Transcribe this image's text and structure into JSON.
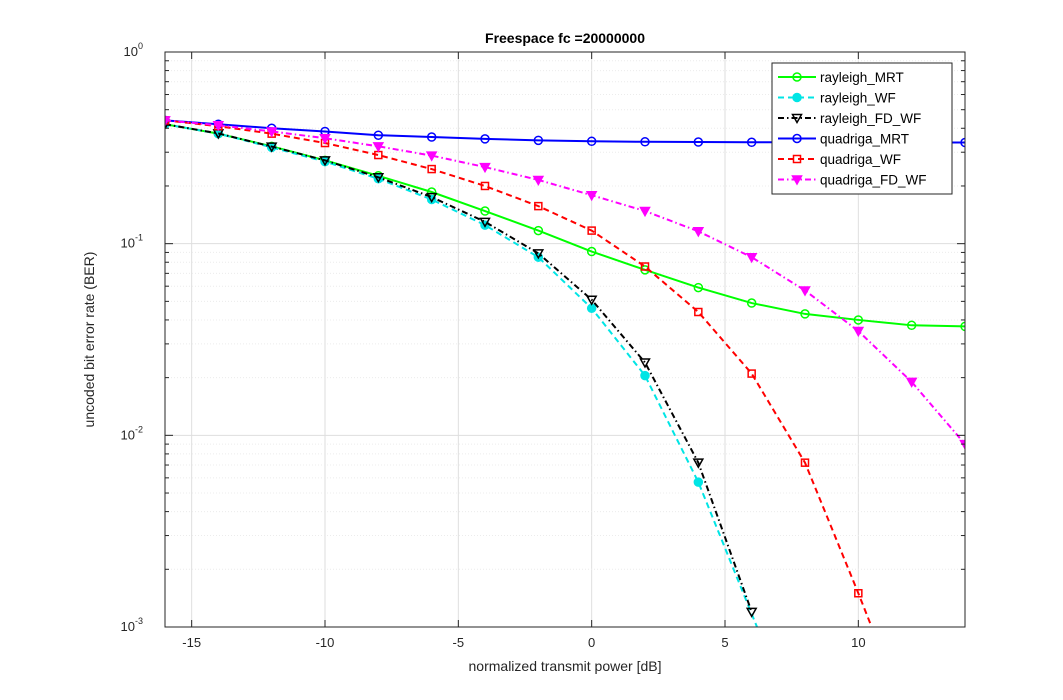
{
  "chart_data": {
    "type": "line",
    "title": "Freespace fc =20000000",
    "xlabel": "normalized transmit power [dB]",
    "ylabel": "uncoded bit error rate (BER)",
    "xlim": [
      -16,
      14
    ],
    "ylim": [
      0.001,
      1
    ],
    "yscale": "log",
    "grid": true,
    "minor_grid": true,
    "legend_position": "top-right",
    "x_ticks": [
      -15,
      -10,
      -5,
      0,
      5,
      10
    ],
    "x_tick_labels": [
      "-15",
      "-10",
      "-5",
      "0",
      "5",
      "10"
    ],
    "y_ticks": [
      {
        "value": 0.001,
        "base": "10",
        "exp": "-3"
      },
      {
        "value": 0.01,
        "base": "10",
        "exp": "-2"
      },
      {
        "value": 0.1,
        "base": "10",
        "exp": "-1"
      },
      {
        "value": 1,
        "base": "10",
        "exp": "0"
      }
    ],
    "series": [
      {
        "name": "rayleigh_MRT",
        "color": "#00ff00",
        "line": "solid",
        "marker": "circle",
        "x": [
          -16,
          -14,
          -12,
          -10,
          -8,
          -6,
          -4,
          -2,
          0,
          2,
          4,
          6,
          8,
          10,
          12,
          14
        ],
        "y": [
          0.42,
          0.375,
          0.322,
          0.272,
          0.226,
          0.186,
          0.148,
          0.117,
          0.091,
          0.073,
          0.059,
          0.049,
          0.043,
          0.04,
          0.0375,
          0.037
        ]
      },
      {
        "name": "rayleigh_WF",
        "color": "#00e5e5",
        "line": "dashed",
        "marker": "circle-filled",
        "x": [
          -16,
          -14,
          -12,
          -10,
          -8,
          -6,
          -4,
          -2,
          0,
          2,
          4,
          6.2
        ],
        "y": [
          0.42,
          0.375,
          0.318,
          0.268,
          0.218,
          0.17,
          0.125,
          0.085,
          0.046,
          0.0205,
          0.0057,
          0.001
        ]
      },
      {
        "name": "rayleigh_FD_WF",
        "color": "#000000",
        "line": "dashdot",
        "marker": "triangle-down",
        "x": [
          -16,
          -14,
          -12,
          -10,
          -8,
          -6,
          -4,
          -2,
          0,
          2,
          4,
          6
        ],
        "y": [
          0.42,
          0.376,
          0.321,
          0.272,
          0.222,
          0.175,
          0.13,
          0.089,
          0.051,
          0.024,
          0.0072,
          0.0012
        ]
      },
      {
        "name": "quadriga_MRT",
        "color": "#0000ff",
        "line": "solid",
        "marker": "circle",
        "x": [
          -16,
          -14,
          -12,
          -10,
          -8,
          -6,
          -4,
          -2,
          0,
          2,
          4,
          6,
          8,
          10,
          12,
          14
        ],
        "y": [
          0.44,
          0.42,
          0.4,
          0.385,
          0.368,
          0.36,
          0.352,
          0.346,
          0.342,
          0.34,
          0.339,
          0.338,
          0.338,
          0.338,
          0.337,
          0.337
        ]
      },
      {
        "name": "quadriga_WF",
        "color": "#ff0000",
        "line": "dashed",
        "marker": "square",
        "x": [
          -16,
          -14,
          -12,
          -10,
          -8,
          -6,
          -4,
          -2,
          0,
          2,
          4,
          6,
          8,
          10,
          10.5
        ],
        "y": [
          0.44,
          0.41,
          0.375,
          0.335,
          0.29,
          0.245,
          0.2,
          0.157,
          0.117,
          0.076,
          0.044,
          0.021,
          0.0072,
          0.0015,
          0.001
        ]
      },
      {
        "name": "quadriga_FD_WF",
        "color": "#ff00ff",
        "line": "dashdot",
        "marker": "triangle-down-filled",
        "x": [
          -16,
          -14,
          -12,
          -10,
          -8,
          -6,
          -4,
          -2,
          0,
          2,
          4,
          6,
          8,
          10,
          12,
          14
        ],
        "y": [
          0.44,
          0.415,
          0.385,
          0.355,
          0.322,
          0.288,
          0.251,
          0.215,
          0.179,
          0.148,
          0.116,
          0.085,
          0.057,
          0.035,
          0.019,
          0.009
        ]
      }
    ]
  }
}
